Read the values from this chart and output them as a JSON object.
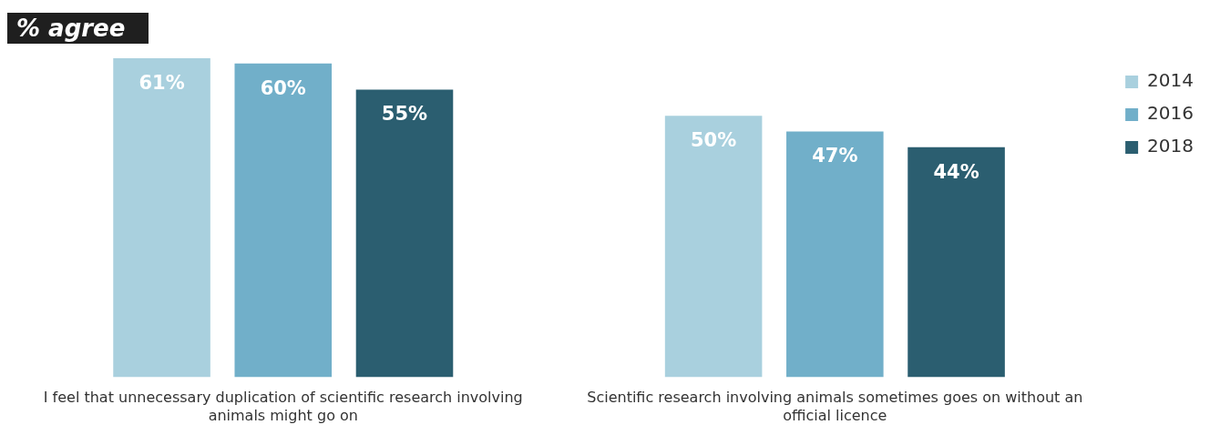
{
  "chart_data": {
    "type": "bar",
    "title": "% agree",
    "categories": [
      "I feel that unnecessary duplication of scientific research involving animals might go on",
      "Scientific research involving animals sometimes goes on without an official licence"
    ],
    "series": [
      {
        "name": "2014",
        "color": "#a9d0de",
        "values": [
          61,
          50
        ],
        "value_labels": [
          "61%",
          "50%"
        ]
      },
      {
        "name": "2016",
        "color": "#71afc9",
        "values": [
          60,
          47
        ],
        "value_labels": [
          "60%",
          "47%"
        ]
      },
      {
        "name": "2018",
        "color": "#2b5e70",
        "values": [
          55,
          44
        ],
        "value_labels": [
          "55%",
          "44%"
        ]
      }
    ],
    "legend": "top right",
    "grid": false
  }
}
